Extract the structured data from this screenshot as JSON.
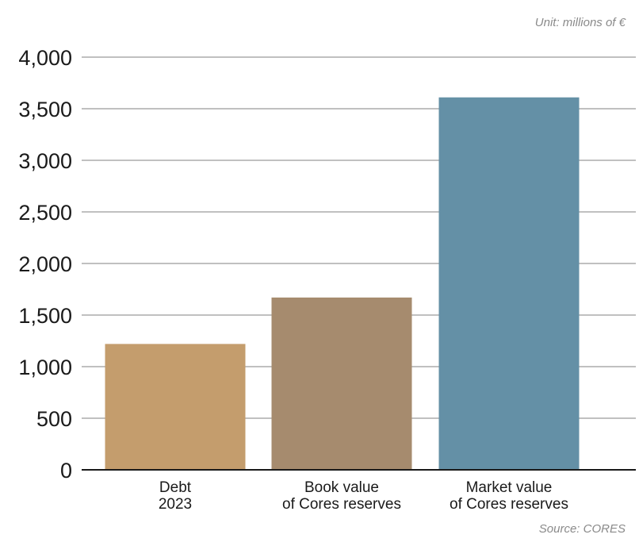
{
  "chart_data": {
    "type": "bar",
    "unit_note": "Unit: millions of €",
    "source_note": "Source: CORES",
    "categories": [
      [
        "Debt",
        "2023"
      ],
      [
        "Book value",
        "of Cores reserves"
      ],
      [
        "Market value",
        "of Cores reserves"
      ]
    ],
    "values": [
      1220,
      1670,
      3610
    ],
    "colors": [
      "#c49d6d",
      "#a68b6e",
      "#6490a6"
    ],
    "ylim": [
      0,
      4000
    ],
    "yticks": [
      0,
      500,
      1000,
      1500,
      2000,
      2500,
      3000,
      3500,
      4000
    ],
    "ytick_labels": [
      "0",
      "500",
      "1,000",
      "1,500",
      "2,000",
      "2,500",
      "3,000",
      "3,500",
      "4,000"
    ],
    "grid": true,
    "gridline_color": "#9a9a9a",
    "axis_color": "#1a1a1a"
  }
}
